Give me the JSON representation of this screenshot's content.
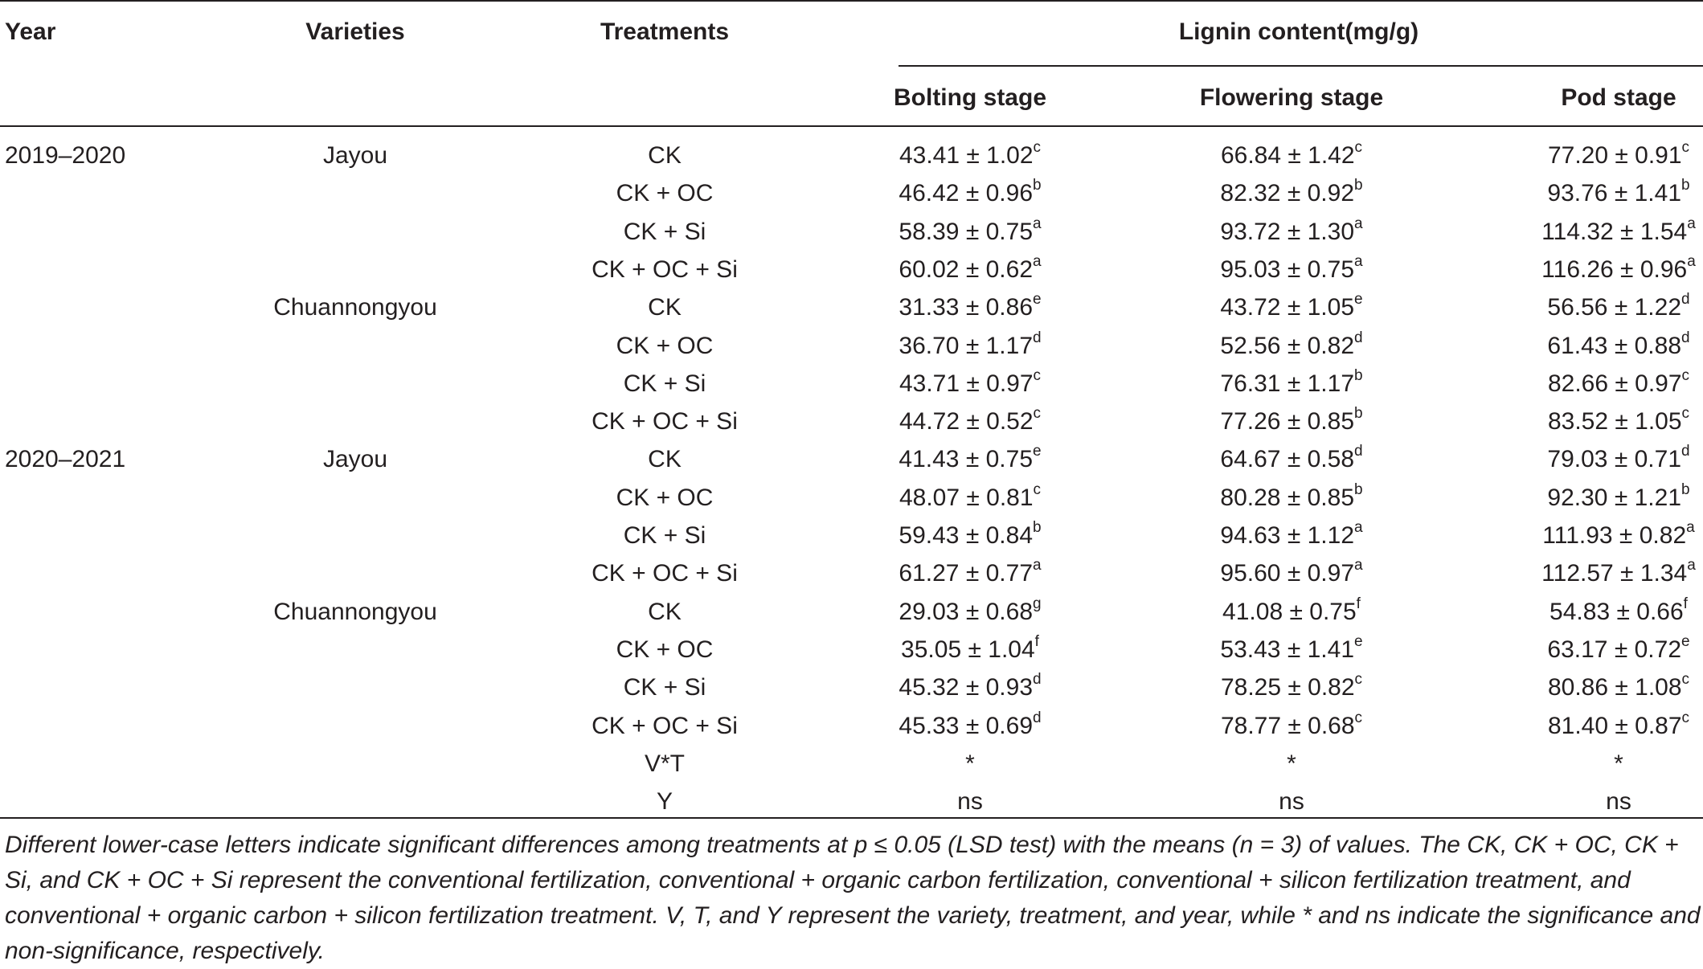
{
  "headers": {
    "year": "Year",
    "varieties": "Varieties",
    "treatments": "Treatments",
    "lignin": "Lignin content(mg/g)",
    "bolting": "Bolting stage",
    "flowering": "Flowering stage",
    "pod": "Pod stage"
  },
  "rows": [
    {
      "year": "2019–2020",
      "variety": "Jayou",
      "treatment": "CK",
      "b": "43.41 ± 1.02",
      "bs": "c",
      "f": "66.84 ± 1.42",
      "fs": "c",
      "p": "77.20 ± 0.91",
      "ps": "c"
    },
    {
      "year": "",
      "variety": "",
      "treatment": "CK + OC",
      "b": "46.42 ± 0.96",
      "bs": "b",
      "f": "82.32 ± 0.92",
      "fs": "b",
      "p": "93.76 ± 1.41",
      "ps": "b"
    },
    {
      "year": "",
      "variety": "",
      "treatment": "CK + Si",
      "b": "58.39 ± 0.75",
      "bs": "a",
      "f": "93.72 ± 1.30",
      "fs": "a",
      "p": "114.32 ± 1.54",
      "ps": "a"
    },
    {
      "year": "",
      "variety": "",
      "treatment": "CK + OC + Si",
      "b": "60.02 ± 0.62",
      "bs": "a",
      "f": "95.03 ± 0.75",
      "fs": "a",
      "p": "116.26 ± 0.96",
      "ps": "a"
    },
    {
      "year": "",
      "variety": "Chuannongyou",
      "treatment": "CK",
      "b": "31.33 ± 0.86",
      "bs": "e",
      "f": "43.72 ± 1.05",
      "fs": "e",
      "p": "56.56 ± 1.22",
      "ps": "d"
    },
    {
      "year": "",
      "variety": "",
      "treatment": "CK + OC",
      "b": "36.70 ± 1.17",
      "bs": "d",
      "f": "52.56 ± 0.82",
      "fs": "d",
      "p": "61.43 ± 0.88",
      "ps": "d"
    },
    {
      "year": "",
      "variety": "",
      "treatment": "CK + Si",
      "b": "43.71 ± 0.97",
      "bs": "c",
      "f": "76.31 ± 1.17",
      "fs": "b",
      "p": "82.66 ± 0.97",
      "ps": "c"
    },
    {
      "year": "",
      "variety": "",
      "treatment": "CK + OC + Si",
      "b": "44.72 ± 0.52",
      "bs": "c",
      "f": "77.26 ± 0.85",
      "fs": "b",
      "p": "83.52 ± 1.05",
      "ps": "c"
    },
    {
      "year": "2020–2021",
      "variety": "Jayou",
      "treatment": "CK",
      "b": "41.43 ± 0.75",
      "bs": "e",
      "f": "64.67 ± 0.58",
      "fs": "d",
      "p": "79.03 ± 0.71",
      "ps": "d"
    },
    {
      "year": "",
      "variety": "",
      "treatment": "CK + OC",
      "b": "48.07 ± 0.81",
      "bs": "c",
      "f": "80.28 ± 0.85",
      "fs": "b",
      "p": "92.30 ± 1.21",
      "ps": "b"
    },
    {
      "year": "",
      "variety": "",
      "treatment": "CK + Si",
      "b": "59.43 ± 0.84",
      "bs": "b",
      "f": "94.63 ± 1.12",
      "fs": "a",
      "p": "111.93 ± 0.82",
      "ps": "a"
    },
    {
      "year": "",
      "variety": "",
      "treatment": "CK + OC + Si",
      "b": "61.27 ± 0.77",
      "bs": "a",
      "f": "95.60 ± 0.97",
      "fs": "a",
      "p": "112.57 ± 1.34",
      "ps": "a"
    },
    {
      "year": "",
      "variety": "Chuannongyou",
      "treatment": "CK",
      "b": "29.03 ± 0.68",
      "bs": "g",
      "f": "41.08 ± 0.75",
      "fs": "f",
      "p": "54.83 ± 0.66",
      "ps": "f"
    },
    {
      "year": "",
      "variety": "",
      "treatment": "CK + OC",
      "b": "35.05 ± 1.04",
      "bs": "f",
      "f": "53.43 ± 1.41",
      "fs": "e",
      "p": "63.17 ± 0.72",
      "ps": "e"
    },
    {
      "year": "",
      "variety": "",
      "treatment": "CK + Si",
      "b": "45.32 ± 0.93",
      "bs": "d",
      "f": "78.25 ± 0.82",
      "fs": "c",
      "p": "80.86 ± 1.08",
      "ps": "c"
    },
    {
      "year": "",
      "variety": "",
      "treatment": "CK + OC + Si",
      "b": "45.33 ± 0.69",
      "bs": "d",
      "f": "78.77 ± 0.68",
      "fs": "c",
      "p": "81.40 ± 0.87",
      "ps": "c"
    },
    {
      "year": "",
      "variety": "",
      "treatment": "V*T",
      "b": "*",
      "bs": "",
      "f": "*",
      "fs": "",
      "p": "*",
      "ps": ""
    },
    {
      "year": "",
      "variety": "",
      "treatment": "Y",
      "b": "ns",
      "bs": "",
      "f": "ns",
      "fs": "",
      "p": "ns",
      "ps": ""
    }
  ],
  "footnote": "Different lower-case letters indicate significant differences among treatments at p ≤ 0.05 (LSD test) with the means (n = 3) of values. The CK, CK + OC, CK + Si, and CK + OC + Si represent the conventional fertilization, conventional + organic carbon fertilization, conventional + silicon fertilization treatment, and conventional + organic carbon + silicon fertilization treatment. V, T, and Y represent the variety, treatment, and year, while * and ns indicate the significance and non-significance, respectively."
}
